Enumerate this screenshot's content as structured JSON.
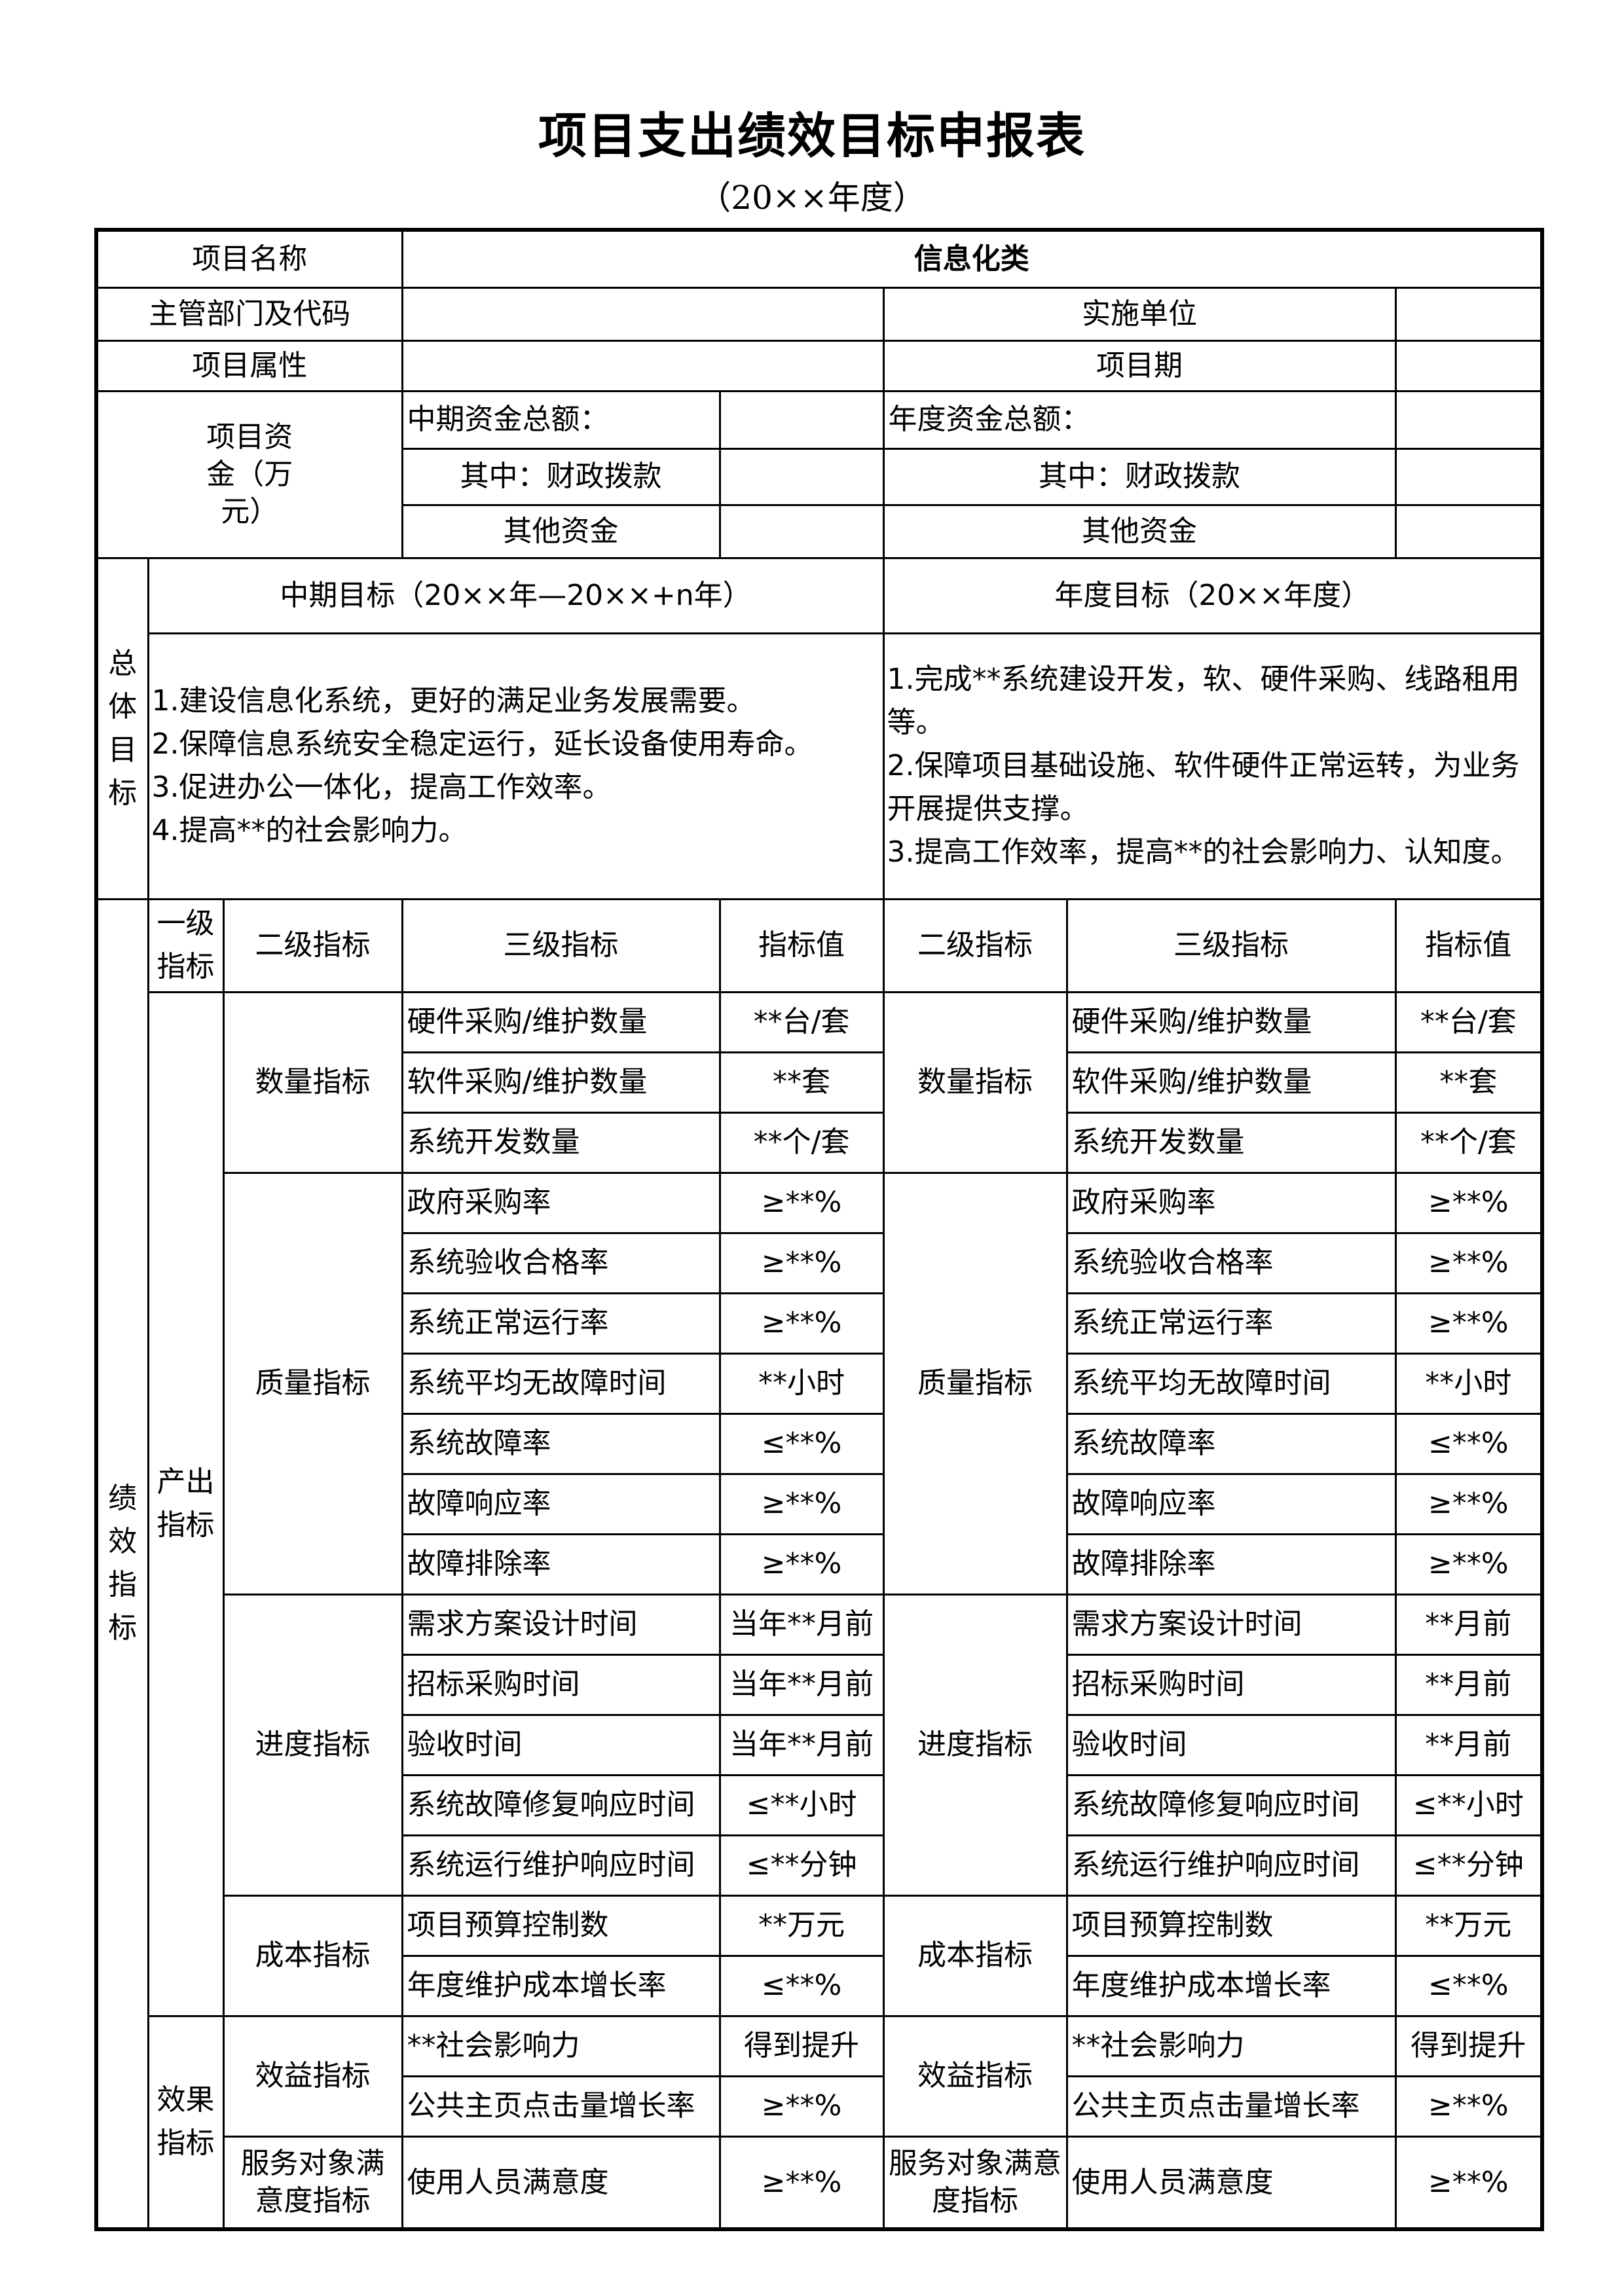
{
  "title": "项目支出绩效目标申报表",
  "subtitle": "（20××年度）",
  "basic": {
    "project_name_label": "项目名称",
    "project_name_value": "信息化类",
    "department_label": "主管部门及代码",
    "department_value": "",
    "implementer_label": "实施单位",
    "implementer_value": "",
    "attribute_label": "项目属性",
    "attribute_value": "",
    "period_label": "项目期",
    "period_value": "",
    "funds_label": "项目资金（万元）",
    "mid_total_label": "中期资金总额：",
    "mid_total_value": "",
    "annual_total_label": "年度资金总额：",
    "annual_total_value": "",
    "fiscal_label": "其中：财政拨款",
    "mid_fiscal_value": "",
    "annual_fiscal_value": "",
    "other_label": "其他资金",
    "mid_other_value": "",
    "annual_other_value": ""
  },
  "goals": {
    "label": "总体目标",
    "mid_header": "中期目标（20××年—20××+n年）",
    "annual_header": "年度目标（20××年度）",
    "mid_text": [
      "1.建设信息化系统，更好的满足业务发展需要。",
      "2.保障信息系统安全稳定运行，延长设备使用寿命。",
      "3.促进办公一体化，提高工作效率。",
      "4.提高**的社会影响力。"
    ],
    "annual_text": [
      "1.完成**系统建设开发，软、硬件采购、线路租用等。",
      "2.保障项目基础设施、软件硬件正常运转，为业务开展提供支撑。",
      "3.提高工作效率，提高**的社会影响力、认知度。"
    ]
  },
  "indicators": {
    "label": "绩效指标",
    "headers": {
      "level1": "一级指标",
      "level2": "二级指标",
      "level3": "三级指标",
      "value": "指标值"
    },
    "groups": [
      {
        "level1": "产出指标",
        "subgroups": [
          {
            "left_level2": "数量指标",
            "right_level2": "数量指标",
            "rows": [
              {
                "left_name": "硬件采购/维护数量",
                "left_value": "**台/套",
                "right_name": "硬件采购/维护数量",
                "right_value": "**台/套"
              },
              {
                "left_name": "软件采购/维护数量",
                "left_value": "**套",
                "right_name": "软件采购/维护数量",
                "right_value": "**套"
              },
              {
                "left_name": "系统开发数量",
                "left_value": "**个/套",
                "right_name": "系统开发数量",
                "right_value": "**个/套"
              }
            ]
          },
          {
            "left_level2": "质量指标",
            "right_level2": "质量指标",
            "rows": [
              {
                "left_name": "政府采购率",
                "left_value": "≥**%",
                "right_name": "政府采购率",
                "right_value": "≥**%"
              },
              {
                "left_name": "系统验收合格率",
                "left_value": "≥**%",
                "right_name": "系统验收合格率",
                "right_value": "≥**%"
              },
              {
                "left_name": "系统正常运行率",
                "left_value": "≥**%",
                "right_name": "系统正常运行率",
                "right_value": "≥**%"
              },
              {
                "left_name": "系统平均无故障时间",
                "left_value": "**小时",
                "right_name": "系统平均无故障时间",
                "right_value": "**小时"
              },
              {
                "left_name": "系统故障率",
                "left_value": "≤**%",
                "right_name": "系统故障率",
                "right_value": "≤**%"
              },
              {
                "left_name": "故障响应率",
                "left_value": "≥**%",
                "right_name": "故障响应率",
                "right_value": "≥**%"
              },
              {
                "left_name": "故障排除率",
                "left_value": "≥**%",
                "right_name": "故障排除率",
                "right_value": "≥**%"
              }
            ]
          },
          {
            "left_level2": "进度指标",
            "right_level2": "进度指标",
            "rows": [
              {
                "left_name": "需求方案设计时间",
                "left_value": "当年**月前",
                "right_name": "需求方案设计时间",
                "right_value": "**月前"
              },
              {
                "left_name": "招标采购时间",
                "left_value": "当年**月前",
                "right_name": "招标采购时间",
                "right_value": "**月前"
              },
              {
                "left_name": "验收时间",
                "left_value": "当年**月前",
                "right_name": "验收时间",
                "right_value": "**月前"
              },
              {
                "left_name": "系统故障修复响应时间",
                "left_value": "≤**小时",
                "right_name": "系统故障修复响应时间",
                "right_value": "≤**小时"
              },
              {
                "left_name": "系统运行维护响应时间",
                "left_value": "≤**分钟",
                "right_name": "系统运行维护响应时间",
                "right_value": "≤**分钟"
              }
            ]
          },
          {
            "left_level2": "成本指标",
            "right_level2": "成本指标",
            "rows": [
              {
                "left_name": "项目预算控制数",
                "left_value": "**万元",
                "right_name": "项目预算控制数",
                "right_value": "**万元"
              },
              {
                "left_name": "年度维护成本增长率",
                "left_value": "≤**%",
                "right_name": "年度维护成本增长率",
                "right_value": "≤**%"
              }
            ]
          }
        ]
      },
      {
        "level1": "效果指标",
        "subgroups": [
          {
            "left_level2": "效益指标",
            "right_level2": "效益指标",
            "rows": [
              {
                "left_name": "**社会影响力",
                "left_value": "得到提升",
                "right_name": "**社会影响力",
                "right_value": "得到提升"
              },
              {
                "left_name": "公共主页点击量增长率",
                "left_value": "≥**%",
                "right_name": "公共主页点击量增长率",
                "right_value": "≥**%"
              }
            ]
          },
          {
            "left_level2": "服务对象满意度指标",
            "right_level2": "服务对象满意度指标",
            "tall": true,
            "rows": [
              {
                "left_name": "使用人员满意度",
                "left_value": "≥**%",
                "right_name": "使用人员满意度",
                "right_value": "≥**%"
              }
            ]
          }
        ]
      }
    ]
  }
}
